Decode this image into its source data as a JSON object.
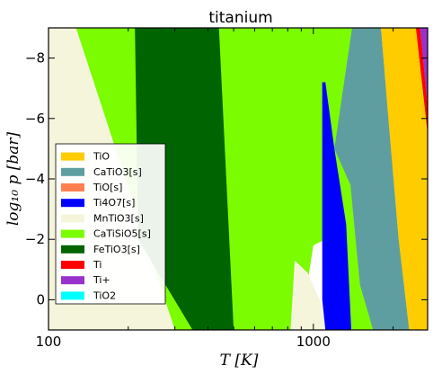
{
  "chart_data": {
    "type": "area",
    "title": "titanium",
    "xlabel": "T [K]",
    "ylabel": "log10 p [bar]",
    "xscale": "log",
    "xlim": [
      100,
      2700
    ],
    "ylim": [
      -9,
      1
    ],
    "y_axis_inverted": true,
    "grid": false,
    "legend_position": "center-left",
    "x_ticks": [
      {
        "value": 100,
        "label": "100"
      },
      {
        "value": 1000,
        "label": "1000"
      }
    ],
    "y_ticks": [
      {
        "value": -8,
        "label": "−8"
      },
      {
        "value": -6,
        "label": "−6"
      },
      {
        "value": -4,
        "label": "−4"
      },
      {
        "value": -2,
        "label": "−2"
      },
      {
        "value": 0,
        "label": "0"
      }
    ],
    "series": [
      {
        "name": "TiO",
        "color": "#ffcc00"
      },
      {
        "name": "CaTiO3[s]",
        "color": "#5f9ea0"
      },
      {
        "name": "TiO[s]",
        "color": "#ff7f50"
      },
      {
        "name": "Ti4O7[s]",
        "color": "#0000ff"
      },
      {
        "name": "MnTiO3[s]",
        "color": "#f5f5dc"
      },
      {
        "name": "CaTiSiO5[s]",
        "color": "#7cfc00"
      },
      {
        "name": "FeTiO3[s]",
        "color": "#006400"
      },
      {
        "name": "Ti",
        "color": "#ff0000"
      },
      {
        "name": "Ti+",
        "color": "#9932cc"
      },
      {
        "name": "TiO2",
        "color": "#00ffff"
      }
    ],
    "regions": [
      {
        "species": "MnTiO3[s]",
        "polygon": [
          [
            100,
            -9
          ],
          [
            127,
            -9
          ],
          [
            300,
            1
          ],
          [
            100,
            1
          ]
        ]
      },
      {
        "species": "CaTiSiO5[s]",
        "polygon": [
          [
            127,
            -9
          ],
          [
            1700,
            -9
          ],
          [
            2300,
            1
          ],
          [
            1110,
            1
          ],
          [
            1110,
            -2
          ],
          [
            1000,
            -1.8
          ],
          [
            860,
            1.8
          ],
          [
            500,
            1
          ],
          [
            300,
            1
          ]
        ]
      },
      {
        "species": "FeTiO3[s]",
        "polygon": [
          [
            212,
            -9
          ],
          [
            440,
            -9
          ],
          [
            500,
            1
          ],
          [
            350,
            1
          ],
          [
            218,
            -2
          ]
        ]
      },
      {
        "species": "MnTiO3[s]",
        "polygon": [
          [
            820,
            1
          ],
          [
            850,
            -1.3
          ],
          [
            950,
            -0.9
          ],
          [
            1080,
            0.2
          ],
          [
            1130,
            1
          ]
        ]
      },
      {
        "species": "Ti4O7[s]",
        "polygon": [
          [
            1080,
            -7.2
          ],
          [
            1110,
            -7.2
          ],
          [
            1200,
            -5
          ],
          [
            1330,
            -2.5
          ],
          [
            1390,
            1
          ],
          [
            1110,
            1
          ],
          [
            1080,
            0
          ]
        ]
      },
      {
        "species": "CaTiO3[s]",
        "polygon": [
          [
            1400,
            -9
          ],
          [
            1800,
            -9
          ],
          [
            2100,
            -2
          ],
          [
            2300,
            1
          ],
          [
            1680,
            1
          ],
          [
            1500,
            -0.5
          ],
          [
            1380,
            -3.8
          ],
          [
            1200,
            -5
          ]
        ]
      },
      {
        "species": "TiO",
        "polygon": [
          [
            1800,
            -9
          ],
          [
            2700,
            -9
          ],
          [
            2700,
            1
          ],
          [
            2300,
            1
          ],
          [
            2100,
            -2
          ],
          [
            1920,
            -6
          ]
        ]
      },
      {
        "species": "Ti",
        "polygon": [
          [
            2440,
            -9
          ],
          [
            2530,
            -9
          ],
          [
            2700,
            -6.4
          ],
          [
            2700,
            -5.5
          ]
        ]
      },
      {
        "species": "Ti+",
        "polygon": [
          [
            2530,
            -9
          ],
          [
            2700,
            -9
          ],
          [
            2700,
            -6.4
          ]
        ]
      }
    ]
  }
}
